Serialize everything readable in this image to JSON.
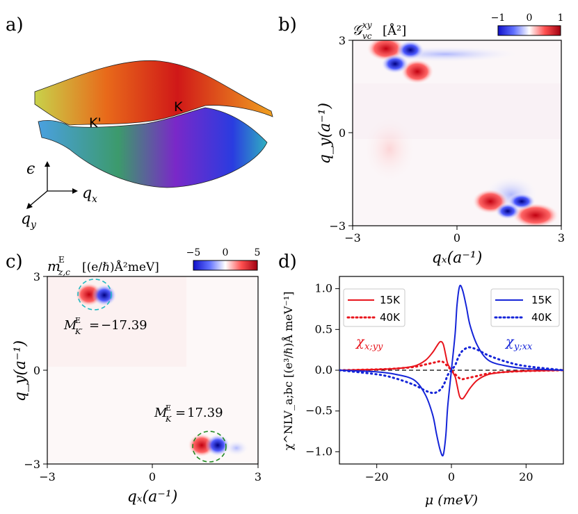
{
  "panels": {
    "a": {
      "label": "a)",
      "band_labels": [
        "K'",
        "K"
      ],
      "axis_labels": {
        "energy": "ϵ",
        "qx": "q",
        "qx_sub": "x",
        "qy": "q",
        "qy_sub": "y"
      }
    },
    "b": {
      "label": "b)",
      "title_main": "𝒢",
      "title_sup": "xy",
      "title_sub": "vc",
      "title_unit": "[Å²]",
      "colorbar_ticks": [
        "−1",
        "0",
        "1"
      ],
      "x_ticks": [
        "−3",
        "0",
        "3"
      ],
      "y_ticks": [
        "3",
        "0",
        "−3"
      ],
      "xlabel": "qₓ(a⁻¹)",
      "ylabel": "q_y(a⁻¹)"
    },
    "c": {
      "label": "c)",
      "title_main": "m",
      "title_sup": "E",
      "title_sub": "z,c",
      "title_unit": "[(e/ℏ)Å²meV]",
      "colorbar_ticks": [
        "−5",
        "0",
        "5"
      ],
      "x_ticks": [
        "−3",
        "0",
        "3"
      ],
      "y_ticks": [
        "3",
        "0",
        "−3"
      ],
      "annot_kprime": "M^E_K′ = −17.39",
      "annot_k": "M^E_K = 17.39",
      "annot_kprime_val": "−17.39",
      "annot_k_val": "17.39"
    },
    "d": {
      "label": "d)",
      "ylabel": "χ^NLV_a;bc  [(e³/ℏ)Å meV⁻¹]",
      "xlabel": "μ (meV)",
      "legend_left": [
        "15K",
        "40K"
      ],
      "legend_right": [
        "15K",
        "40K"
      ],
      "chi_red": "χ",
      "chi_red_sub": "x;yy",
      "chi_blue": "χ",
      "chi_blue_sub": "y;xx"
    }
  },
  "colors": {
    "red": "#e8141c",
    "blue": "#1424d8",
    "black": "#000000"
  },
  "chart_data": [
    {
      "type": "heatmap",
      "title": "G^xy_vc [Å^2]",
      "xlabel": "q_x (a^-1)",
      "ylabel": "q_y (a^-1)",
      "xlim": [
        -3,
        3
      ],
      "ylim": [
        -3,
        3
      ],
      "colorbar_range": [
        -1,
        1
      ],
      "features": [
        {
          "name": "K-prime valley",
          "center": [
            -1.7,
            2.3
          ]
        },
        {
          "name": "K valley",
          "center": [
            1.7,
            -2.3
          ]
        }
      ]
    },
    {
      "type": "heatmap",
      "title": "m^E_z,c [(e/hbar) Å^2 meV]",
      "xlabel": "q_x (a^-1)",
      "ylabel": "q_y (a^-1)",
      "xlim": [
        -3,
        3
      ],
      "ylim": [
        -3,
        3
      ],
      "colorbar_range": [
        -5,
        5
      ],
      "features": [
        {
          "name": "K-prime valley",
          "center": [
            -1.7,
            2.3
          ],
          "M": -17.39
        },
        {
          "name": "K valley",
          "center": [
            1.7,
            -2.3
          ],
          "M": 17.39
        }
      ]
    },
    {
      "type": "line",
      "xlabel": "mu (meV)",
      "ylabel": "chi^NLV_a;bc [(e^3/hbar) Å meV^-1]",
      "xlim": [
        -30,
        30
      ],
      "ylim": [
        -1.15,
        1.15
      ],
      "x_ticks": [
        -20,
        0,
        20
      ],
      "y_ticks": [
        1.0,
        0.5,
        0.0,
        -0.5,
        -1.0
      ],
      "x_tick_labels": [
        "−20",
        "0",
        "20"
      ],
      "y_tick_labels": [
        "1.0",
        "0.5",
        "0.0",
        "−0.5",
        "−1.0"
      ],
      "x": [
        -30,
        -20,
        -15,
        -10,
        -7,
        -5,
        -4,
        -3,
        -2.2,
        -1.5,
        -1,
        0,
        1,
        1.5,
        2.2,
        3,
        4,
        5,
        7,
        10,
        15,
        20,
        30
      ],
      "series": [
        {
          "name": "χ_x;yy 15K",
          "color": "red",
          "style": "solid",
          "values": [
            0.0,
            0.01,
            0.02,
            0.05,
            0.12,
            0.22,
            0.29,
            0.35,
            0.32,
            0.18,
            0.08,
            0.0,
            -0.08,
            -0.18,
            -0.32,
            -0.35,
            -0.29,
            -0.22,
            -0.12,
            -0.05,
            -0.02,
            -0.01,
            0.0
          ]
        },
        {
          "name": "χ_x;yy 40K",
          "color": "red",
          "style": "dotted",
          "values": [
            0.0,
            0.01,
            0.02,
            0.04,
            0.07,
            0.09,
            0.1,
            0.11,
            0.1,
            0.07,
            0.05,
            0.0,
            -0.05,
            -0.07,
            -0.1,
            -0.11,
            -0.1,
            -0.09,
            -0.07,
            -0.04,
            -0.02,
            -0.01,
            0.0
          ]
        },
        {
          "name": "χ_y;xx 15K",
          "color": "blue",
          "style": "solid",
          "values": [
            0.0,
            -0.02,
            -0.05,
            -0.12,
            -0.3,
            -0.55,
            -0.78,
            -0.98,
            -1.04,
            -0.8,
            -0.45,
            0.0,
            0.45,
            0.8,
            1.03,
            0.98,
            0.78,
            0.55,
            0.3,
            0.12,
            0.05,
            0.02,
            0.0
          ]
        },
        {
          "name": "χ_y;xx 40K",
          "color": "blue",
          "style": "dotted",
          "values": [
            0.0,
            -0.05,
            -0.1,
            -0.18,
            -0.25,
            -0.28,
            -0.27,
            -0.24,
            -0.19,
            -0.12,
            -0.06,
            0.0,
            0.06,
            0.12,
            0.19,
            0.24,
            0.27,
            0.28,
            0.25,
            0.18,
            0.1,
            0.05,
            0.0
          ]
        }
      ]
    }
  ]
}
